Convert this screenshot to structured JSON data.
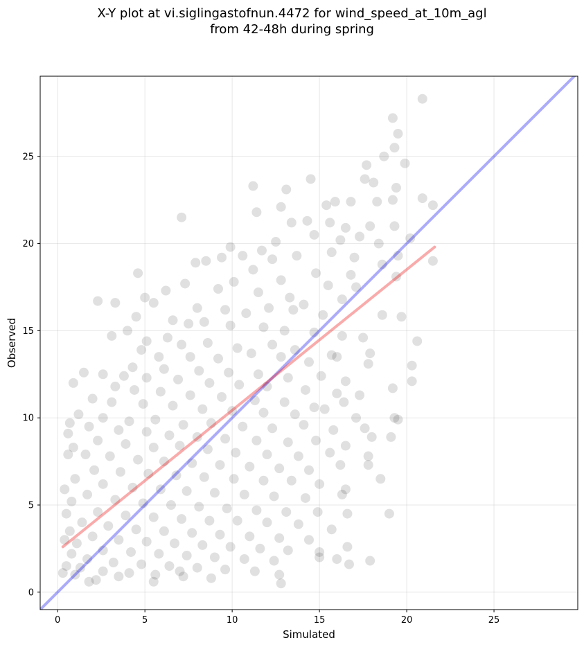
{
  "chart_data": {
    "type": "scatter",
    "title": "X-Y plot at vi.siglingastofnun.4472 for wind_speed_at_10m_agl",
    "subtitle": "from 42-48h during spring",
    "xlabel": "Simulated",
    "ylabel": "Observed",
    "xlim": [
      -1,
      29.8
    ],
    "ylim": [
      -1,
      29.6
    ],
    "xticks": [
      0,
      5,
      10,
      15,
      20,
      25
    ],
    "yticks": [
      0,
      5,
      10,
      15,
      20,
      25
    ],
    "grid": true,
    "colors": {
      "points": "#000000",
      "identity": "#0000ee",
      "fit": "#ee0000"
    },
    "identity_line": {
      "x": [
        -1,
        29.8
      ],
      "y": [
        -1,
        29.8
      ]
    },
    "fit_line": {
      "x": [
        0.3,
        21.6
      ],
      "y": [
        2.6,
        19.8
      ]
    },
    "points": [
      [
        20.9,
        28.3
      ],
      [
        19.2,
        27.2
      ],
      [
        19.5,
        26.3
      ],
      [
        19.3,
        25.5
      ],
      [
        18.7,
        25
      ],
      [
        19.9,
        24.6
      ],
      [
        17.7,
        24.5
      ],
      [
        17.6,
        23.7
      ],
      [
        18.1,
        23.5
      ],
      [
        14.5,
        23.7
      ],
      [
        13.1,
        23.1
      ],
      [
        11.2,
        23.3
      ],
      [
        19.4,
        23.2
      ],
      [
        18.3,
        22.4
      ],
      [
        19.2,
        22.5
      ],
      [
        20.9,
        22.6
      ],
      [
        21.5,
        22.2
      ],
      [
        15.4,
        22.2
      ],
      [
        15.9,
        22.4
      ],
      [
        16.8,
        22.4
      ],
      [
        12.8,
        22.1
      ],
      [
        11.4,
        21.8
      ],
      [
        13.4,
        21.2
      ],
      [
        7.1,
        21.5
      ],
      [
        14.3,
        21.3
      ],
      [
        15.6,
        21.2
      ],
      [
        16.5,
        20.9
      ],
      [
        17.9,
        21.0
      ],
      [
        19.3,
        21.0
      ],
      [
        20.2,
        20.3
      ],
      [
        9.9,
        19.8
      ],
      [
        12.5,
        20.1
      ],
      [
        14.7,
        20.5
      ],
      [
        16.2,
        20.2
      ],
      [
        17.3,
        20.4
      ],
      [
        18.4,
        20.0
      ],
      [
        19.5,
        19.3
      ],
      [
        21.5,
        19.0
      ],
      [
        10.6,
        19.3
      ],
      [
        11.7,
        19.6
      ],
      [
        8.5,
        19.0
      ],
      [
        9.4,
        19.2
      ],
      [
        12.3,
        19.1
      ],
      [
        13.7,
        19.3
      ],
      [
        15.7,
        19.5
      ],
      [
        17.0,
        19.2
      ],
      [
        18.6,
        18.8
      ],
      [
        7.9,
        18.9
      ],
      [
        11.2,
        18.5
      ],
      [
        14.8,
        18.3
      ],
      [
        16.8,
        18.2
      ],
      [
        19.4,
        18.1
      ],
      [
        4.6,
        18.3
      ],
      [
        6.2,
        17.3
      ],
      [
        7.3,
        17.7
      ],
      [
        10.1,
        17.8
      ],
      [
        12.8,
        17.9
      ],
      [
        15.5,
        17.6
      ],
      [
        17.1,
        17.5
      ],
      [
        9.2,
        17.4
      ],
      [
        11.5,
        17.2
      ],
      [
        13.3,
        16.9
      ],
      [
        14.1,
        16.5
      ],
      [
        16.3,
        16.8
      ],
      [
        2.3,
        16.7
      ],
      [
        3.3,
        16.6
      ],
      [
        5.0,
        16.9
      ],
      [
        5.5,
        16.6
      ],
      [
        8.0,
        16.3
      ],
      [
        9.6,
        16.2
      ],
      [
        10.8,
        16.0
      ],
      [
        12.1,
        16.3
      ],
      [
        13.5,
        16.2
      ],
      [
        15.2,
        15.9
      ],
      [
        18.6,
        15.9
      ],
      [
        19.7,
        15.8
      ],
      [
        4.5,
        15.8
      ],
      [
        6.6,
        15.6
      ],
      [
        7.5,
        15.4
      ],
      [
        8.4,
        15.5
      ],
      [
        9.9,
        15.3
      ],
      [
        11.8,
        15.2
      ],
      [
        13.0,
        15.0
      ],
      [
        14.7,
        14.9
      ],
      [
        16.3,
        14.7
      ],
      [
        17.5,
        14.6
      ],
      [
        20.6,
        14.4
      ],
      [
        3.1,
        14.7
      ],
      [
        4.0,
        15.0
      ],
      [
        5.1,
        14.4
      ],
      [
        6.3,
        14.6
      ],
      [
        7.1,
        14.2
      ],
      [
        8.6,
        14.3
      ],
      [
        10.3,
        14.0
      ],
      [
        12.3,
        14.2
      ],
      [
        13.6,
        13.9
      ],
      [
        15.7,
        13.6
      ],
      [
        17.9,
        13.7
      ],
      [
        4.8,
        13.9
      ],
      [
        5.8,
        13.5
      ],
      [
        7.6,
        13.5
      ],
      [
        9.2,
        13.4
      ],
      [
        11.1,
        13.7
      ],
      [
        12.8,
        13.5
      ],
      [
        14.4,
        13.2
      ],
      [
        16.0,
        13.5
      ],
      [
        17.8,
        13.1
      ],
      [
        20.3,
        13.0
      ],
      [
        4.3,
        12.9
      ],
      [
        6.1,
        12.8
      ],
      [
        8.1,
        12.7
      ],
      [
        9.8,
        12.6
      ],
      [
        11.5,
        12.5
      ],
      [
        13.2,
        12.3
      ],
      [
        15.1,
        12.4
      ],
      [
        16.5,
        12.1
      ],
      [
        20.3,
        12.1
      ],
      [
        1.5,
        12.6
      ],
      [
        2.6,
        12.5
      ],
      [
        3.8,
        12.4
      ],
      [
        5.1,
        12.3
      ],
      [
        6.9,
        12.2
      ],
      [
        8.7,
        12.0
      ],
      [
        10.4,
        11.9
      ],
      [
        12.0,
        11.8
      ],
      [
        14.2,
        11.6
      ],
      [
        16.0,
        11.4
      ],
      [
        17.3,
        11.3
      ],
      [
        0.9,
        12.0
      ],
      [
        3.3,
        11.8
      ],
      [
        4.4,
        11.6
      ],
      [
        5.9,
        11.5
      ],
      [
        7.6,
        11.3
      ],
      [
        9.4,
        11.2
      ],
      [
        11.3,
        11.0
      ],
      [
        13.0,
        10.9
      ],
      [
        14.7,
        10.6
      ],
      [
        16.4,
        10.9
      ],
      [
        19.2,
        11.7
      ],
      [
        2.0,
        11.1
      ],
      [
        3.1,
        10.9
      ],
      [
        4.9,
        10.8
      ],
      [
        6.6,
        10.7
      ],
      [
        8.3,
        10.5
      ],
      [
        10.0,
        10.4
      ],
      [
        11.8,
        10.3
      ],
      [
        13.6,
        10.2
      ],
      [
        15.3,
        10.5
      ],
      [
        17.1,
        10.0
      ],
      [
        19.3,
        10.0
      ],
      [
        19.5,
        9.9
      ],
      [
        1.2,
        10.2
      ],
      [
        2.6,
        10.0
      ],
      [
        4.1,
        9.8
      ],
      [
        5.6,
        9.9
      ],
      [
        7.2,
        9.6
      ],
      [
        8.8,
        9.7
      ],
      [
        10.6,
        9.5
      ],
      [
        12.3,
        9.4
      ],
      [
        14.1,
        9.6
      ],
      [
        15.8,
        9.3
      ],
      [
        17.6,
        9.4
      ],
      [
        0.7,
        9.7
      ],
      [
        1.8,
        9.5
      ],
      [
        3.5,
        9.3
      ],
      [
        5.1,
        9.2
      ],
      [
        6.4,
        9.0
      ],
      [
        8.0,
        8.9
      ],
      [
        9.6,
        8.8
      ],
      [
        11.4,
        8.7
      ],
      [
        13.2,
        8.6
      ],
      [
        14.8,
        8.7
      ],
      [
        16.5,
        8.4
      ],
      [
        18.0,
        8.9
      ],
      [
        19.1,
        8.9
      ],
      [
        0.6,
        9.1
      ],
      [
        2.3,
        8.7
      ],
      [
        3.9,
        8.5
      ],
      [
        5.5,
        8.3
      ],
      [
        7.0,
        8.4
      ],
      [
        8.6,
        8.2
      ],
      [
        10.2,
        8.0
      ],
      [
        12.0,
        7.9
      ],
      [
        13.8,
        7.8
      ],
      [
        15.6,
        8.0
      ],
      [
        17.8,
        7.8
      ],
      [
        0.9,
        8.3
      ],
      [
        1.6,
        7.9
      ],
      [
        3.0,
        7.8
      ],
      [
        4.6,
        7.6
      ],
      [
        6.1,
        7.5
      ],
      [
        7.7,
        7.4
      ],
      [
        9.3,
        7.3
      ],
      [
        11.0,
        7.2
      ],
      [
        12.7,
        7.1
      ],
      [
        14.4,
        7.0
      ],
      [
        16.2,
        7.3
      ],
      [
        17.8,
        7.3
      ],
      [
        0.6,
        7.9
      ],
      [
        2.1,
        7.0
      ],
      [
        3.6,
        6.9
      ],
      [
        5.2,
        6.8
      ],
      [
        6.8,
        6.7
      ],
      [
        8.4,
        6.6
      ],
      [
        10.1,
        6.5
      ],
      [
        11.8,
        6.4
      ],
      [
        13.4,
        6.4
      ],
      [
        15.0,
        6.2
      ],
      [
        16.5,
        5.9
      ],
      [
        18.5,
        6.5
      ],
      [
        1.0,
        6.5
      ],
      [
        2.6,
        6.2
      ],
      [
        4.3,
        6.0
      ],
      [
        5.9,
        5.9
      ],
      [
        7.4,
        5.8
      ],
      [
        9.0,
        5.7
      ],
      [
        10.7,
        5.6
      ],
      [
        12.4,
        5.5
      ],
      [
        14.2,
        5.4
      ],
      [
        16.3,
        5.6
      ],
      [
        0.4,
        5.9
      ],
      [
        1.7,
        5.6
      ],
      [
        3.3,
        5.3
      ],
      [
        4.9,
        5.1
      ],
      [
        6.5,
        5.0
      ],
      [
        8.1,
        4.9
      ],
      [
        9.7,
        4.8
      ],
      [
        11.4,
        4.7
      ],
      [
        13.1,
        4.6
      ],
      [
        14.9,
        4.6
      ],
      [
        16.6,
        4.5
      ],
      [
        0.8,
        5.2
      ],
      [
        2.3,
        4.6
      ],
      [
        3.9,
        4.4
      ],
      [
        5.5,
        4.3
      ],
      [
        7.1,
        4.2
      ],
      [
        8.7,
        4.1
      ],
      [
        10.3,
        4.1
      ],
      [
        12.0,
        4.0
      ],
      [
        13.8,
        3.9
      ],
      [
        15.7,
        3.6
      ],
      [
        19.0,
        4.5
      ],
      [
        0.5,
        4.5
      ],
      [
        1.4,
        4.0
      ],
      [
        2.9,
        3.8
      ],
      [
        4.5,
        3.6
      ],
      [
        6.1,
        3.5
      ],
      [
        7.7,
        3.4
      ],
      [
        9.3,
        3.3
      ],
      [
        11.0,
        3.2
      ],
      [
        12.7,
        3.1
      ],
      [
        14.4,
        3.0
      ],
      [
        16.6,
        2.6
      ],
      [
        0.7,
        3.5
      ],
      [
        2.0,
        3.2
      ],
      [
        3.5,
        3.0
      ],
      [
        5.1,
        2.9
      ],
      [
        6.7,
        2.8
      ],
      [
        8.3,
        2.7
      ],
      [
        9.9,
        2.6
      ],
      [
        11.6,
        2.5
      ],
      [
        13.2,
        2.4
      ],
      [
        15.0,
        2.3
      ],
      [
        0.4,
        3.0
      ],
      [
        1.1,
        2.8
      ],
      [
        2.6,
        2.4
      ],
      [
        4.2,
        2.3
      ],
      [
        5.8,
        2.2
      ],
      [
        7.4,
        2.1
      ],
      [
        9.0,
        2.0
      ],
      [
        10.7,
        1.9
      ],
      [
        12.4,
        1.8
      ],
      [
        15.0,
        2.0
      ],
      [
        16.0,
        1.9
      ],
      [
        0.8,
        2.2
      ],
      [
        1.7,
        1.9
      ],
      [
        3.2,
        1.7
      ],
      [
        4.8,
        1.6
      ],
      [
        6.4,
        1.5
      ],
      [
        8.0,
        1.4
      ],
      [
        9.6,
        1.3
      ],
      [
        11.3,
        1.2
      ],
      [
        12.7,
        1.0
      ],
      [
        16.7,
        1.6
      ],
      [
        17.9,
        1.8
      ],
      [
        0.5,
        1.5
      ],
      [
        1.3,
        1.4
      ],
      [
        2.6,
        1.2
      ],
      [
        4.1,
        1.1
      ],
      [
        5.6,
        1.0
      ],
      [
        7.2,
        0.9
      ],
      [
        8.8,
        0.8
      ],
      [
        12.8,
        0.5
      ],
      [
        1.0,
        1.0
      ],
      [
        2.2,
        0.7
      ],
      [
        3.5,
        0.9
      ],
      [
        5.5,
        0.6
      ],
      [
        0.3,
        1.1
      ],
      [
        1.8,
        0.6
      ],
      [
        7.0,
        1.2
      ]
    ]
  }
}
